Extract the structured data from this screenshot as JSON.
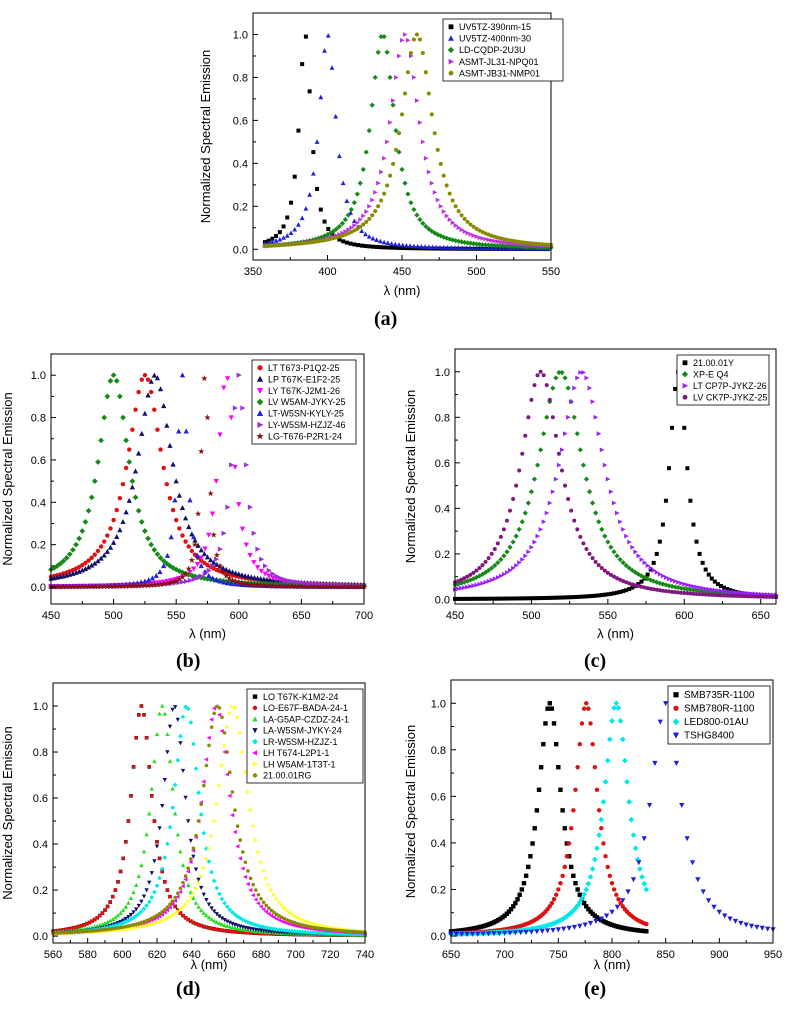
{
  "colors": {
    "black": "#000000",
    "blue": "#1f1fe0",
    "green": "#148a14",
    "magenta": "#c030e0",
    "olive": "#8a8a00",
    "red": "#e01010",
    "navy": "#10106a",
    "pink": "#ff00ff",
    "purple": "#9a30d8",
    "darkred": "#8a1010",
    "violet": "#9a20ff",
    "plum": "#801880",
    "brightgreen": "#20e020",
    "cyan": "#00e8e8",
    "yellow": "#ffff20",
    "rose": "#ff40c0",
    "darkyellow": "#8a8a20",
    "lime": "#40ff40"
  },
  "chart_data": [
    {
      "id": "a",
      "caption": "(a)",
      "type": "scatter",
      "xlabel": "λ (nm)",
      "ylabel": "Normalized Spectral Emission",
      "xlim": [
        350,
        550
      ],
      "ylim": [
        -0.05,
        1.1
      ],
      "xticks": [
        350,
        400,
        450,
        500,
        550
      ],
      "yticks": [
        0.0,
        0.2,
        0.4,
        0.6,
        0.8,
        1.0
      ],
      "ytick_labels": [
        "0.0",
        "0.2",
        "0.4",
        "0.6",
        "0.8",
        "1.0"
      ],
      "legend_position": "top-right",
      "series": [
        {
          "name": "UV5TZ-390nm-15",
          "peak": 385,
          "fwhm": 10,
          "marker": "square",
          "color": "black",
          "range": [
            358,
            550
          ],
          "step": 2.5
        },
        {
          "name": "UV5TZ-400nm-30",
          "peak": 400,
          "fwhm": 14,
          "marker": "triangle-up",
          "color": "blue",
          "range": [
            358,
            550
          ],
          "step": 2.5
        },
        {
          "name": "LD-CQDP-2U3U",
          "peak": 437,
          "fwhm": 20,
          "marker": "diamond",
          "color": "green",
          "range": [
            358,
            550
          ],
          "step": 2.0
        },
        {
          "name": "ASMT-JL31-NPQ01",
          "peak": 452,
          "fwhm": 24,
          "marker": "triangle-right",
          "color": "magenta",
          "range": [
            358,
            550
          ],
          "step": 2.0
        },
        {
          "name": "ASMT-JB31-NMP01",
          "peak": 460,
          "fwhm": 26,
          "marker": "circle",
          "color": "olive",
          "range": [
            358,
            550
          ],
          "step": 2.0
        }
      ]
    },
    {
      "id": "b",
      "caption": "(b)",
      "type": "scatter",
      "xlabel": "λ (nm)",
      "ylabel": "Normalized Spectral Emission",
      "xlim": [
        450,
        700
      ],
      "ylim": [
        -0.08,
        1.1
      ],
      "xticks": [
        450,
        500,
        550,
        600,
        650,
        700
      ],
      "yticks": [
        0.0,
        0.2,
        0.4,
        0.6,
        0.8,
        1.0
      ],
      "ytick_labels": [
        "0.0",
        "0.2",
        "0.4",
        "0.6",
        "0.8",
        "1.0"
      ],
      "legend_position": "top-right",
      "series": [
        {
          "name": "LT T673-P1Q2-25",
          "peak": 525,
          "fwhm": 34,
          "marker": "circle",
          "color": "red",
          "range": [
            450,
            700
          ],
          "step": 2.5
        },
        {
          "name": "LP T67K-E1F2-25",
          "peak": 533,
          "fwhm": 34,
          "marker": "triangle-up",
          "color": "navy",
          "range": [
            450,
            700
          ],
          "step": 2.5
        },
        {
          "name": "LY T67K-J2M1-26",
          "peak": 590,
          "fwhm": 16,
          "marker": "triangle-down",
          "color": "pink",
          "range": [
            450,
            700
          ],
          "step": 3.0
        },
        {
          "name": "LV W5AM-JYKY-25",
          "peak": 500,
          "fwhm": 30,
          "marker": "diamond",
          "color": "green",
          "range": [
            450,
            700
          ],
          "step": 2.5
        },
        {
          "name": "LT-W5SN-KYLY-25",
          "peak": 555,
          "fwhm": 10,
          "marker": "triangle-up",
          "color": "blue",
          "range": [
            450,
            700
          ],
          "step": 3.0
        },
        {
          "name": "LY-W5SM-HZJZ-46",
          "peak": 600,
          "fwhm": 14,
          "marker": "triangle-right",
          "color": "purple",
          "range": [
            450,
            700
          ],
          "step": 3.0
        },
        {
          "name": "LG-T676-P2R1-24",
          "peak": 573,
          "fwhm": 8,
          "marker": "star",
          "color": "darkred",
          "range": [
            450,
            700
          ],
          "step": 2.5
        }
      ]
    },
    {
      "id": "c",
      "caption": "(c)",
      "type": "scatter",
      "xlabel": "λ (nm)",
      "ylabel": "Normalized Spectral Emission",
      "xlim": [
        450,
        660
      ],
      "ylim": [
        -0.02,
        1.1
      ],
      "xticks": [
        450,
        500,
        550,
        600,
        650
      ],
      "yticks": [
        0.0,
        0.2,
        0.4,
        0.6,
        0.8,
        1.0
      ],
      "ytick_labels": [
        "0.0",
        "0.2",
        "0.4",
        "0.6",
        "0.8",
        "1.0"
      ],
      "legend_position": "top-right",
      "series": [
        {
          "name": "21.00.01Y",
          "peak": 596,
          "fwhm": 14,
          "marker": "square",
          "color": "black",
          "range": [
            450,
            660
          ],
          "step": 2.0
        },
        {
          "name": "XP-E Q4",
          "peak": 519,
          "fwhm": 36,
          "marker": "diamond",
          "color": "green",
          "range": [
            450,
            660
          ],
          "step": 2.0
        },
        {
          "name": "LT CP7P-JYKZ-26",
          "peak": 533,
          "fwhm": 36,
          "marker": "triangle-right",
          "color": "violet",
          "range": [
            450,
            660
          ],
          "step": 2.0
        },
        {
          "name": "LV CK7P-JYKZ-25",
          "peak": 506,
          "fwhm": 32,
          "marker": "circle",
          "color": "plum",
          "range": [
            450,
            660
          ],
          "step": 2.0
        }
      ]
    },
    {
      "id": "d",
      "caption": "(d)",
      "type": "scatter",
      "xlabel": "λ (nm)",
      "ylabel": "Normalized Spectral Emission",
      "xlim": [
        560,
        740
      ],
      "ylim": [
        -0.03,
        1.1
      ],
      "xticks": [
        560,
        580,
        600,
        620,
        640,
        660,
        680,
        700,
        720,
        740
      ],
      "yticks": [
        0.0,
        0.2,
        0.4,
        0.6,
        0.8,
        1.0
      ],
      "ytick_labels": [
        "0.0",
        "0.2",
        "0.4",
        "0.6",
        "0.8",
        "1.0"
      ],
      "legend_position": "top-right",
      "series": [
        {
          "name": "LO T67K-K1M2-24",
          "peak": 611,
          "fwhm": 15,
          "marker": "square",
          "color": "black",
          "range": [
            560,
            740
          ],
          "step": 1.5
        },
        {
          "name": "LO-E67F-BADA-24-1",
          "peak": 611,
          "fwhm": 15,
          "marker": "circle",
          "color": "red",
          "range": [
            560,
            740
          ],
          "step": 1.5
        },
        {
          "name": "LA-G5AP-CZDZ-24-1",
          "peak": 623,
          "fwhm": 16,
          "marker": "triangle-up",
          "color": "brightgreen",
          "range": [
            560,
            740
          ],
          "step": 1.5
        },
        {
          "name": "LA-W5SM-JYKY-24",
          "peak": 630,
          "fwhm": 16,
          "marker": "triangle-down",
          "color": "navy",
          "range": [
            560,
            740
          ],
          "step": 1.5
        },
        {
          "name": "LR-W5SM-HZJZ-1",
          "peak": 637,
          "fwhm": 18,
          "marker": "diamond",
          "color": "cyan",
          "range": [
            560,
            740
          ],
          "step": 1.5
        },
        {
          "name": "LH T674-L2P1-1",
          "peak": 654,
          "fwhm": 20,
          "marker": "triangle-left",
          "color": "pink",
          "range": [
            560,
            740
          ],
          "step": 1.5
        },
        {
          "name": "LH W5AM-1T3T-1",
          "peak": 664,
          "fwhm": 22,
          "marker": "triangle-right",
          "color": "yellow",
          "range": [
            560,
            740
          ],
          "step": 1.5
        },
        {
          "name": "21.00.01RG",
          "peak": 655,
          "fwhm": 22,
          "marker": "circle",
          "color": "olive",
          "range": [
            560,
            740
          ],
          "step": 1.5
        }
      ]
    },
    {
      "id": "e",
      "caption": "(e)",
      "type": "scatter",
      "xlabel": "λ (nm)",
      "ylabel": "Normalized Spectral Emission",
      "xlim": [
        650,
        950
      ],
      "ylim": [
        -0.03,
        1.1
      ],
      "xticks": [
        650,
        700,
        750,
        800,
        850,
        900,
        950
      ],
      "yticks": [
        0.0,
        0.2,
        0.4,
        0.6,
        0.8,
        1.0
      ],
      "ytick_labels": [
        "0.0",
        "0.2",
        "0.4",
        "0.6",
        "0.8",
        "1.0"
      ],
      "legend_position": "top-right",
      "series": [
        {
          "name": "SMB735R-1100",
          "peak": 742,
          "fwhm": 26,
          "marker": "square",
          "color": "black",
          "range": [
            650,
            832
          ],
          "step": 2.0
        },
        {
          "name": "SMB780R-1100",
          "peak": 776,
          "fwhm": 26,
          "marker": "circle",
          "color": "red",
          "range": [
            650,
            832
          ],
          "step": 2.0
        },
        {
          "name": "LED800-01AU",
          "peak": 804,
          "fwhm": 28,
          "marker": "diamond",
          "color": "cyan",
          "range": [
            650,
            832
          ],
          "step": 2.0
        },
        {
          "name": "TSHG8400",
          "peak": 850,
          "fwhm": 34,
          "marker": "triangle-down",
          "color": "blue",
          "range": [
            650,
            950
          ],
          "step": 5.0
        }
      ]
    }
  ]
}
